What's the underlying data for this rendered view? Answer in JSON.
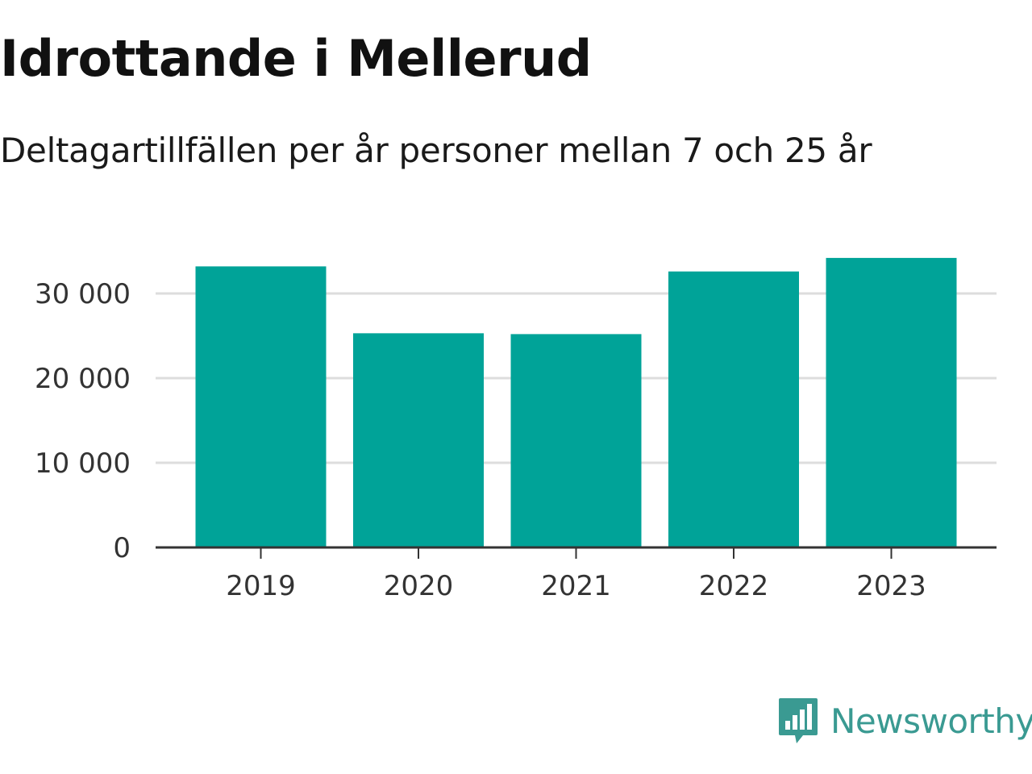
{
  "header": {
    "title": "Idrottande i Mellerud",
    "subtitle": "Deltagartillfällen per år personer mellan 7 och 25 år"
  },
  "chart_data": {
    "type": "bar",
    "title": "Idrottande i Mellerud",
    "subtitle": "Deltagartillfällen per år personer mellan 7 och 25 år",
    "xlabel": "",
    "ylabel": "",
    "categories": [
      "2019",
      "2020",
      "2021",
      "2022",
      "2023"
    ],
    "values": [
      33200,
      25300,
      25200,
      32600,
      34200
    ],
    "ylim": [
      0,
      35000
    ],
    "yticks": [
      0,
      10000,
      20000,
      30000
    ],
    "ytick_labels": [
      "0",
      "10 000",
      "20 000",
      "30 000"
    ],
    "grid": true,
    "legend": "none",
    "colors": {
      "bar": "#00a398",
      "grid": "#dddddd",
      "axis": "#333333"
    }
  },
  "branding": {
    "logo_text": "Newsworthy",
    "logo_icon": "bar-chart-speech-bubble-icon",
    "logo_color": "#3a9a92"
  }
}
